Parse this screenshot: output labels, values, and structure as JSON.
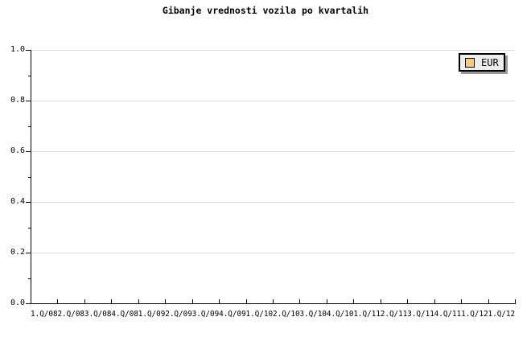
{
  "title": "Gibanje vrednosti vozila po kvartalih",
  "legend": {
    "label": "EUR",
    "swatch_color": "#FACD75",
    "background": "#EEEEEE",
    "border_color": "#000000",
    "shadow_color": "#999999"
  },
  "colors": {
    "background": "#FFFFFF",
    "axis": "#000000",
    "grid": "#DEDEDE",
    "text": "#000000"
  },
  "chart_data": {
    "type": "line",
    "title": "Gibanje vrednosti vozila po kvartalih",
    "x_categories": [
      "1.Q/08",
      "2.Q/08",
      "3.Q/08",
      "4.Q/08",
      "1.Q/09",
      "2.Q/09",
      "3.Q/09",
      "4.Q/09",
      "1.Q/10",
      "2.Q/10",
      "3.Q/10",
      "4.Q/10",
      "1.Q/11",
      "2.Q/11",
      "3.Q/11",
      "4.Q/11",
      "1.Q/12",
      "1.Q/12"
    ],
    "y_tick_labels": [
      "0.0",
      "0.2",
      "0.4",
      "0.6",
      "0.8",
      "1.0"
    ],
    "y_tick_values": [
      0,
      0.2,
      0.4,
      0.6,
      0.8,
      1.0
    ],
    "y_minor_tick_values": [
      0.1,
      0.3,
      0.5,
      0.7,
      0.9
    ],
    "ylim": [
      0,
      1
    ],
    "xlabel": "",
    "ylabel": "",
    "grid": "horizontal major gridlines only",
    "legend_position": "top-right",
    "series": [
      {
        "name": "EUR",
        "values": []
      }
    ],
    "plot_empty": true
  }
}
